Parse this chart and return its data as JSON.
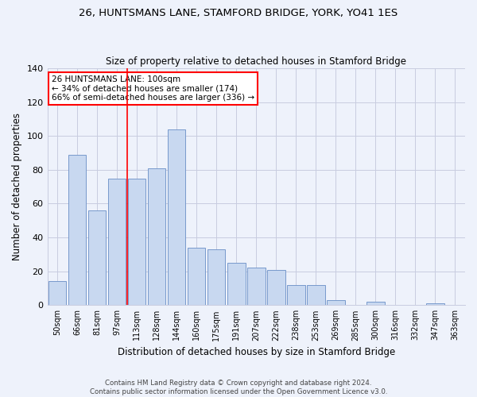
{
  "title": "26, HUNTSMANS LANE, STAMFORD BRIDGE, YORK, YO41 1ES",
  "subtitle": "Size of property relative to detached houses in Stamford Bridge",
  "xlabel": "Distribution of detached houses by size in Stamford Bridge",
  "ylabel": "Number of detached properties",
  "bar_color": "#c8d8f0",
  "bar_edge_color": "#7799cc",
  "bg_color": "#eef2fb",
  "grid_color": "#c8cce0",
  "categories": [
    "50sqm",
    "66sqm",
    "81sqm",
    "97sqm",
    "113sqm",
    "128sqm",
    "144sqm",
    "160sqm",
    "175sqm",
    "191sqm",
    "207sqm",
    "222sqm",
    "238sqm",
    "253sqm",
    "269sqm",
    "285sqm",
    "300sqm",
    "316sqm",
    "332sqm",
    "347sqm",
    "363sqm"
  ],
  "values": [
    14,
    89,
    56,
    75,
    75,
    81,
    104,
    34,
    33,
    25,
    22,
    21,
    12,
    12,
    3,
    0,
    2,
    0,
    0,
    1,
    0
  ],
  "ylim": [
    0,
    140
  ],
  "yticks": [
    0,
    20,
    40,
    60,
    80,
    100,
    120,
    140
  ],
  "property_line_x": 3.5,
  "annotation_title": "26 HUNTSMANS LANE: 100sqm",
  "annotation_line1": "← 34% of detached houses are smaller (174)",
  "annotation_line2": "66% of semi-detached houses are larger (336) →",
  "annotation_box_color": "white",
  "annotation_border_color": "red",
  "vline_color": "red",
  "footnote1": "Contains HM Land Registry data © Crown copyright and database right 2024.",
  "footnote2": "Contains public sector information licensed under the Open Government Licence v3.0."
}
